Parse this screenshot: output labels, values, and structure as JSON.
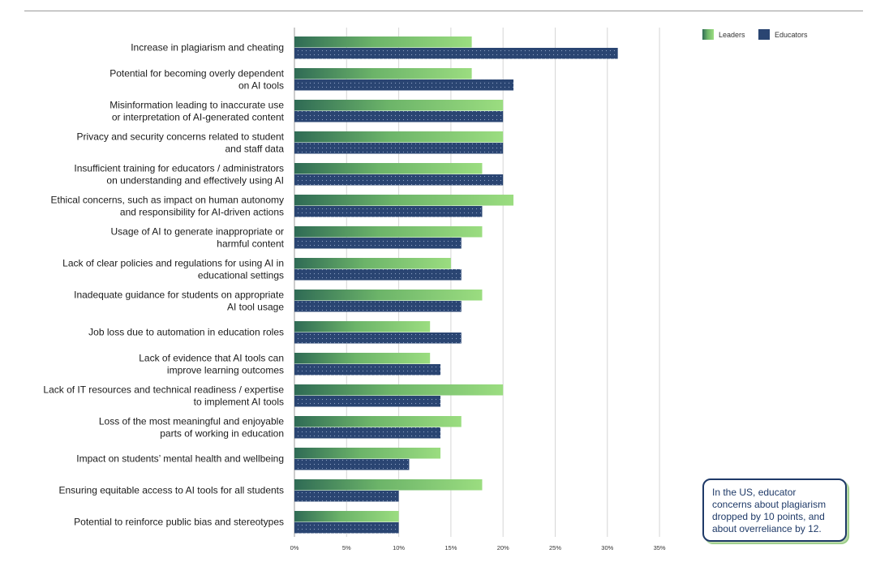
{
  "chart_data": {
    "type": "bar",
    "orientation": "horizontal",
    "categories": [
      [
        "Increase in plagiarism and cheating"
      ],
      [
        "Potential for becoming overly dependent",
        "on AI tools"
      ],
      [
        "Misinformation leading to inaccurate use",
        "or interpretation of AI-generated content"
      ],
      [
        "Privacy and security concerns related to student",
        "and staff data"
      ],
      [
        "Insufficient training for educators / administrators",
        "on understanding and effectively using AI"
      ],
      [
        "Ethical concerns, such as impact on human autonomy",
        "and responsibility for AI-driven actions"
      ],
      [
        "Usage of AI to generate inappropriate or",
        "harmful content"
      ],
      [
        "Lack of clear policies and regulations for using AI in",
        "educational settings"
      ],
      [
        "Inadequate guidance for students on appropriate",
        "AI tool usage"
      ],
      [
        "Job loss due to automation in education roles"
      ],
      [
        "Lack of evidence that AI tools can",
        "improve learning outcomes"
      ],
      [
        "Lack of IT resources and technical readiness / expertise",
        "to implement AI tools"
      ],
      [
        "Loss of the most meaningful and enjoyable",
        "parts of working in education"
      ],
      [
        "Impact on students’ mental health and wellbeing"
      ],
      [
        "Ensuring equitable access to AI tools for all students"
      ],
      [
        "Potential to reinforce public bias and stereotypes"
      ]
    ],
    "series": [
      {
        "name": "Leaders",
        "color": "#7ecb6b",
        "values": [
          17,
          17,
          20,
          20,
          18,
          21,
          18,
          15,
          18,
          13,
          13,
          20,
          16,
          14,
          18,
          10
        ]
      },
      {
        "name": "Educators",
        "color": "#2a4572",
        "values": [
          31,
          21,
          20,
          20,
          20,
          18,
          16,
          16,
          16,
          16,
          14,
          14,
          14,
          11,
          10,
          10
        ]
      }
    ],
    "xticks": [
      "0%",
      "5%",
      "10%",
      "15%",
      "20%",
      "25%",
      "30%",
      "35%"
    ],
    "xlim": [
      0,
      35
    ],
    "xlabel": "",
    "ylabel": "",
    "grid": true,
    "legend": "top-right"
  },
  "callout": {
    "text": "In the US, educator concerns about plagiarism dropped by 10 points, and about overreliance by 12."
  }
}
